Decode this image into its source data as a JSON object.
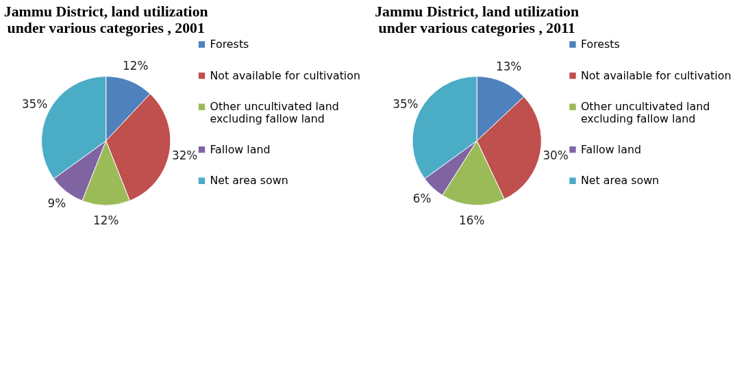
{
  "chart_data": [
    {
      "type": "pie",
      "title": "Jammu District, land utilization under various categories , 2001",
      "categories": [
        "Forests",
        "Not available for cultivation",
        "Other uncultivated land excluding fallow land",
        "Fallow land",
        "Net area sown"
      ],
      "values": [
        12,
        32,
        12,
        9,
        35
      ],
      "value_labels": [
        "12%",
        "32%",
        "12%",
        "9%",
        "35%"
      ],
      "colors": [
        "#4f81bd",
        "#c0504d",
        "#9bbb59",
        "#8064a2",
        "#4bacc6"
      ],
      "legend": "right"
    },
    {
      "type": "pie",
      "title": "Jammu District, land utilization under various categories , 2011",
      "categories": [
        "Forests",
        "Not available for cultivation",
        "Other uncultivated land excluding fallow land",
        "Fallow land",
        "Net area sown"
      ],
      "values": [
        13,
        30,
        16,
        6,
        35
      ],
      "value_labels": [
        "13%",
        "30%",
        "16%",
        "6%",
        "35%"
      ],
      "colors": [
        "#4f81bd",
        "#c0504d",
        "#9bbb59",
        "#8064a2",
        "#4bacc6"
      ],
      "legend": "right"
    }
  ]
}
